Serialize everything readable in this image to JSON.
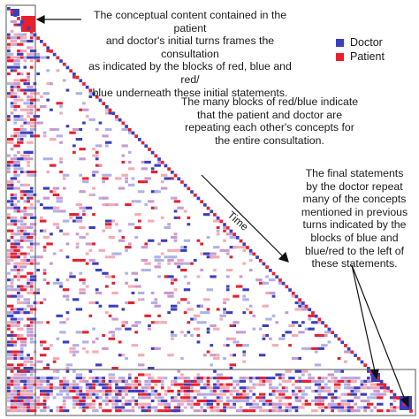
{
  "annotations": [
    {
      "text": "The conceptual content contained in the patient\nand doctor's initial turns frames the consultation\nas indicated by the blocks of red, blue and red/\nblue underneath these initial statements."
    },
    {
      "text": "The many blocks of red/blue indicate\nthat the patient and doctor are\nrepeating each other's concepts for\nthe entire consultation."
    },
    {
      "text": "The final statements\nby the doctor repeat\nmany of the concepts\nmentioned in previous\nturns indicated by the\nblocks of blue and\nblue/red to the left of\nthese statements."
    }
  ],
  "legend": [
    {
      "label": "Doctor",
      "color": "#3a3fbf"
    },
    {
      "label": "Patient",
      "color": "#e8202e"
    }
  ],
  "time_label": "Time",
  "colors": {
    "doctor": "#3a3fbf",
    "patient": "#e8202e",
    "doctor_light": "#aeb2e8",
    "patient_light": "#f6aab4",
    "mixed": "#c89ad0"
  }
}
